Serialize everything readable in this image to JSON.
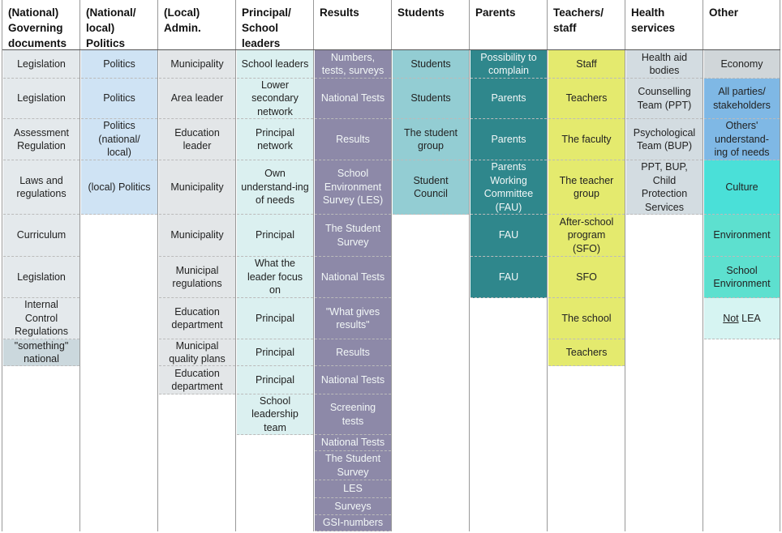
{
  "columns": [
    {
      "header": "(National) Governing documents",
      "color": "#e4e9ec",
      "cells": [
        {
          "text": "Legislation"
        },
        {
          "text": "Legislation"
        },
        {
          "text": "Assessment Regulation"
        },
        {
          "text": "Laws and regulations"
        },
        {
          "text": "Curriculum"
        },
        {
          "text": "Legislation"
        },
        {
          "text": "Internal Control Regulations"
        },
        {
          "text": "\"something\" national",
          "color": "#cbd8dd"
        }
      ]
    },
    {
      "header": "(National/ local) Politics",
      "color": "#cfe3f4",
      "cells": [
        {
          "text": "Politics"
        },
        {
          "text": "Politics"
        },
        {
          "text": "Politics (national/ local)"
        },
        {
          "text": "(local) Politics"
        }
      ]
    },
    {
      "header": "(Local) Admin.",
      "color": "#e3e6e8",
      "cells": [
        {
          "text": "Municipality"
        },
        {
          "text": "Area leader"
        },
        {
          "text": "Education leader"
        },
        {
          "text": "Municipality"
        },
        {
          "text": "Municipality"
        },
        {
          "text": "Municipal regulations"
        },
        {
          "text": "Education department"
        },
        {
          "text": "Municipal quality plans"
        },
        {
          "text": "Education department"
        }
      ]
    },
    {
      "header": "Principal/ School leaders",
      "color": "#dbf0f0",
      "cells": [
        {
          "text": "School leaders"
        },
        {
          "text": "Lower secondary network"
        },
        {
          "text": "Principal network"
        },
        {
          "text": "Own understand-ing of needs"
        },
        {
          "text": "Principal"
        },
        {
          "text": "What the leader focus on"
        },
        {
          "text": "Principal"
        },
        {
          "text": "Principal"
        },
        {
          "text": "Principal"
        },
        {
          "text": "School leadership team"
        }
      ]
    },
    {
      "header": "Results",
      "color": "#8d89a8",
      "cells": [
        {
          "text": "Numbers, tests, surveys"
        },
        {
          "text": "National Tests"
        },
        {
          "text": "Results"
        },
        {
          "text": "School Environment Survey (LES)"
        },
        {
          "text": "The Student Survey"
        },
        {
          "text": "National Tests"
        },
        {
          "text": "\"What gives results\""
        },
        {
          "text": "Results"
        },
        {
          "text": "National Tests"
        },
        {
          "text": "Screening tests"
        },
        {
          "text": "National Tests"
        },
        {
          "text": "The Student Survey"
        },
        {
          "text": "LES"
        },
        {
          "text": "Surveys"
        },
        {
          "text": "GSI-numbers"
        }
      ]
    },
    {
      "header": "Students",
      "color": "#93cdd3",
      "cells": [
        {
          "text": "Students"
        },
        {
          "text": "Students"
        },
        {
          "text": "The student group"
        },
        {
          "text": "Student Council"
        }
      ]
    },
    {
      "header": "Parents",
      "color": "#2f878c",
      "cells": [
        {
          "text": "Possibility to complain"
        },
        {
          "text": "Parents"
        },
        {
          "text": "Parents"
        },
        {
          "text": "Parents Working Committee (FAU)"
        },
        {
          "text": "FAU"
        },
        {
          "text": "FAU"
        }
      ]
    },
    {
      "header": "Teachers/ staff",
      "color": "#e4ea6e",
      "cells": [
        {
          "text": "Staff"
        },
        {
          "text": "Teachers"
        },
        {
          "text": "The faculty"
        },
        {
          "text": "The teacher group"
        },
        {
          "text": "After-school program (SFO)"
        },
        {
          "text": "SFO"
        },
        {
          "text": "The school"
        },
        {
          "text": "Teachers"
        }
      ]
    },
    {
      "header": "Health services",
      "color": "#d3dce1",
      "cells": [
        {
          "text": "Health aid bodies"
        },
        {
          "text": "Counselling Team (PPT)"
        },
        {
          "text": "Psychological Team (BUP)"
        },
        {
          "text": "PPT, BUP, Child Protection Services"
        }
      ]
    },
    {
      "header": "Other",
      "color": "#d0d6d9",
      "cells": [
        {
          "text": "Economy"
        },
        {
          "text": "All parties/ stakeholders",
          "color": "#7fb8e5"
        },
        {
          "text": "Others' understand-ing of needs",
          "color": "#7fb8e5"
        },
        {
          "text": "Culture",
          "color": "#4ae0d8"
        },
        {
          "text": "Environment",
          "color": "#5de0cf"
        },
        {
          "text": "School Environment",
          "color": "#5de0cf"
        },
        {
          "parts": [
            {
              "text": "Not",
              "underline": true
            },
            {
              "text": "LEA"
            }
          ],
          "color": "#d6f4f2"
        }
      ]
    }
  ]
}
